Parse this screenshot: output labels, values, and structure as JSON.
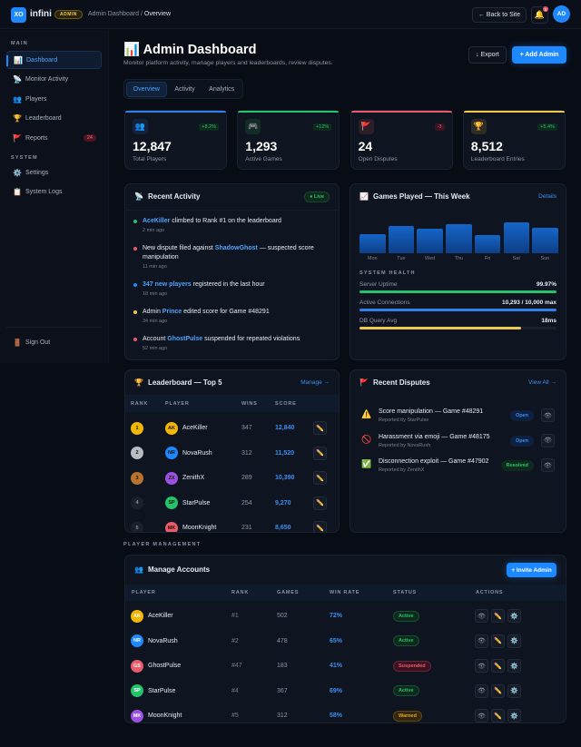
{
  "topbar": {
    "logo": "XO",
    "brand": "infini",
    "badge": "ADMIN",
    "breadcrumb": [
      "Admin Dashboard",
      "/",
      "Overview"
    ],
    "back": "← Back to Site",
    "notif_count": "5",
    "avatar": "AD"
  },
  "sidebar": {
    "main_label": "MAIN",
    "system_label": "SYSTEM",
    "items": [
      {
        "icon": "📊",
        "label": "Dashboard",
        "active": true
      },
      {
        "icon": "📡",
        "label": "Monitor Activity"
      },
      {
        "icon": "👥",
        "label": "Players"
      },
      {
        "icon": "🏆",
        "label": "Leaderboard"
      },
      {
        "icon": "🚩",
        "label": "Reports",
        "count": "24"
      }
    ],
    "system_items": [
      {
        "icon": "⚙️",
        "label": "Settings"
      },
      {
        "icon": "📋",
        "label": "System Logs"
      }
    ],
    "signout": {
      "icon": "🚪",
      "label": "Sign Out"
    }
  },
  "header": {
    "icon": "📊",
    "title": "Admin Dashboard",
    "subtitle": "Monitor platform activity, manage players and leaderboards, review disputes.",
    "export": "↓ Export",
    "add_admin": "+ Add Admin"
  },
  "tabs": [
    "Overview",
    "Activity",
    "Analytics"
  ],
  "stats": [
    {
      "icon": "👥",
      "value": "12,847",
      "label": "Total Players",
      "change": "+8.2%",
      "color": "#2f80ed",
      "trend": "up"
    },
    {
      "icon": "🎮",
      "value": "1,293",
      "label": "Active Games",
      "change": "+12%",
      "color": "#27c26c",
      "trend": "up"
    },
    {
      "icon": "🚩",
      "value": "24",
      "label": "Open Disputes",
      "change": "-3",
      "color": "#eb5a6a",
      "trend": "down"
    },
    {
      "icon": "🏆",
      "value": "8,512",
      "label": "Leaderboard Entries",
      "change": "+5.4%",
      "color": "#f2c94c",
      "trend": "up"
    }
  ],
  "activity": {
    "title": "Recent Activity",
    "icon": "📡",
    "live": "● Live",
    "items": [
      {
        "color": "#27c26c",
        "pre": "",
        "link": "AceKiller",
        "post": " climbed to Rank #1 on the leaderboard",
        "time": "2 min ago"
      },
      {
        "color": "#eb5a6a",
        "pre": "New dispute filed against ",
        "link": "ShadowGhost",
        "post": " — suspected score manipulation",
        "time": "11 min ago"
      },
      {
        "color": "#1e88ff",
        "pre": "",
        "link": "347 new players",
        "post": " registered in the last hour",
        "time": "18 min ago"
      },
      {
        "color": "#f2c94c",
        "pre": "Admin ",
        "link": "Prince",
        "post": " edited score for Game #48291",
        "time": "34 min ago"
      },
      {
        "color": "#eb5a6a",
        "pre": "Account ",
        "link": "GhostPulse",
        "post": " suspended for repeated violations",
        "time": "52 min ago"
      }
    ]
  },
  "games": {
    "title": "Games Played — This Week",
    "icon": "📈",
    "details": "Details",
    "chart_data": {
      "type": "bar",
      "categories": [
        "Mon",
        "Tue",
        "Wed",
        "Thu",
        "Fri",
        "Sat",
        "Sun"
      ],
      "values": [
        62,
        88,
        78,
        93,
        58,
        100,
        83
      ]
    },
    "health_title": "SYSTEM HEALTH",
    "health": [
      {
        "label": "Server Uptime",
        "value": "99.97%",
        "fill": 99.97,
        "color": "#27c26c"
      },
      {
        "label": "Active Connections",
        "value": "10,293 / 10,000 max",
        "fill": 100,
        "color": "#2f80ed"
      },
      {
        "label": "DB Query Avg",
        "value": "18ms",
        "fill": 82,
        "color": "#f2c94c"
      }
    ]
  },
  "leaderboard": {
    "title": "Leaderboard — Top 5",
    "icon": "🏆",
    "manage": "Manage →",
    "headers": [
      "RANK",
      "PLAYER",
      "WINS",
      "SCORE"
    ],
    "rows": [
      {
        "rank": "1",
        "initials": "AK",
        "name": "AceKiller",
        "wins": "347",
        "score": "12,840",
        "rc": "#f2b705",
        "ac": "#f2b705"
      },
      {
        "rank": "2",
        "initials": "NR",
        "name": "NovaRush",
        "wins": "312",
        "score": "11,520",
        "rc": "#b8bcc4",
        "ac": "#1e88ff"
      },
      {
        "rank": "3",
        "initials": "ZX",
        "name": "ZenithX",
        "wins": "289",
        "score": "10,390",
        "rc": "#b8732f",
        "ac": "#9b51e0"
      },
      {
        "rank": "4",
        "initials": "SP",
        "name": "StarPulse",
        "wins": "254",
        "score": "9,270",
        "rc": "#1a212d",
        "ac": "#27c26c"
      },
      {
        "rank": "5",
        "initials": "MK",
        "name": "MoonKnight",
        "wins": "231",
        "score": "8,650",
        "rc": "#1a212d",
        "ac": "#eb5a6a"
      }
    ]
  },
  "disputes": {
    "title": "Recent Disputes",
    "icon": "🚩",
    "view_all": "View All →",
    "items": [
      {
        "icon": "⚠️",
        "title": "Score manipulation — Game #48291",
        "sub": "Reported by StarPulse",
        "status": "Open"
      },
      {
        "icon": "🚫",
        "title": "Harassment via emoji — Game #48175",
        "sub": "Reported by NovaRush",
        "status": "Open"
      },
      {
        "icon": "✅",
        "title": "Disconnection exploit — Game #47902",
        "sub": "Reported by ZenithX",
        "status": "Resolved"
      }
    ]
  },
  "management": {
    "section": "PLAYER MANAGEMENT",
    "title": "Manage Accounts",
    "icon": "👥",
    "invite": "+ Invite Admin",
    "headers": [
      "PLAYER",
      "RANK",
      "GAMES",
      "WIN RATE",
      "STATUS",
      "ACTIONS"
    ],
    "rows": [
      {
        "initials": "AK",
        "name": "AceKiller",
        "rank": "#1",
        "games": "502",
        "win": "72%",
        "status": "Active",
        "ac": "#f2b705"
      },
      {
        "initials": "NR",
        "name": "NovaRush",
        "rank": "#2",
        "games": "478",
        "win": "65%",
        "status": "Active",
        "ac": "#1e88ff"
      },
      {
        "initials": "GS",
        "name": "GhostPulse",
        "rank": "#47",
        "games": "183",
        "win": "41%",
        "status": "Suspended",
        "ac": "#eb5a6a"
      },
      {
        "initials": "SP",
        "name": "StarPulse",
        "rank": "#4",
        "games": "367",
        "win": "69%",
        "status": "Active",
        "ac": "#27c26c"
      },
      {
        "initials": "MK",
        "name": "MoonKnight",
        "rank": "#5",
        "games": "312",
        "win": "58%",
        "status": "Warned",
        "ac": "#9b51e0"
      }
    ]
  }
}
